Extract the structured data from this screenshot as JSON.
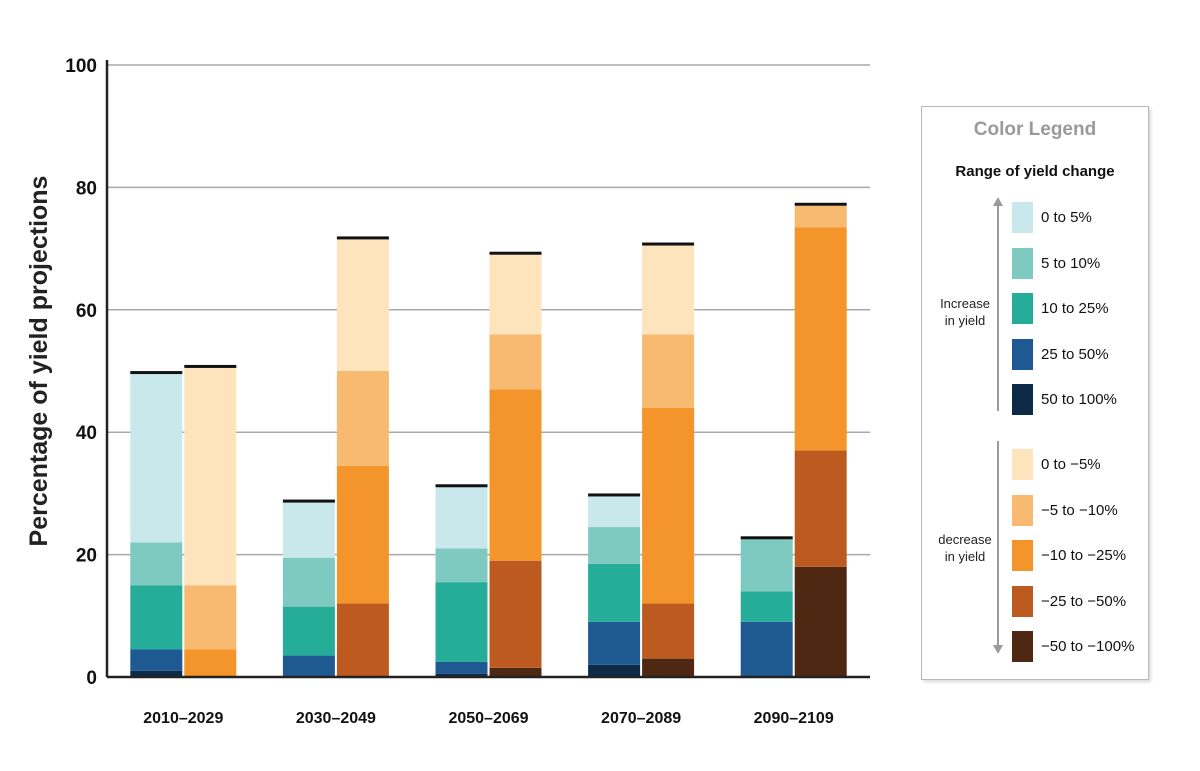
{
  "chart_data": {
    "type": "bar",
    "stacked": true,
    "ylabel": "Percentage of yield projections",
    "xlabel": "",
    "ylim": [
      0,
      100
    ],
    "yticks": [
      0,
      20,
      40,
      60,
      80,
      100
    ],
    "grid": true,
    "categories": [
      "2010–2029",
      "2030–2049",
      "2050–2069",
      "2070–2089",
      "2090–2109"
    ],
    "increase_series": [
      {
        "name": "50 to 100%",
        "color": "#0d2a47",
        "values": [
          1,
          0,
          0.5,
          2,
          0
        ]
      },
      {
        "name": "25 to 50%",
        "color": "#1f5992",
        "values": [
          3.5,
          3.5,
          2,
          7,
          9
        ]
      },
      {
        "name": "10 to 25%",
        "color": "#25ad9a",
        "values": [
          10.5,
          8,
          13,
          9.5,
          5
        ]
      },
      {
        "name": "5 to 10%",
        "color": "#7ecac0",
        "values": [
          7,
          8,
          5.5,
          6,
          8.5
        ]
      },
      {
        "name": "0 to 5%",
        "color": "#c9e8ec",
        "values": [
          27.5,
          9,
          10,
          5,
          0
        ]
      }
    ],
    "decrease_series": [
      {
        "name": "−50 to −100%",
        "color": "#4f2813",
        "values": [
          0,
          0,
          1.5,
          3,
          18
        ]
      },
      {
        "name": "−25 to −50%",
        "color": "#bd5a20",
        "values": [
          0,
          12,
          17.5,
          9,
          19
        ]
      },
      {
        "name": "−10 to −25%",
        "color": "#f3952a",
        "values": [
          4.5,
          22.5,
          28,
          32,
          36.5
        ]
      },
      {
        "name": "−5 to −10%",
        "color": "#f8ba70",
        "values": [
          10.5,
          15.5,
          9,
          12,
          3.5
        ]
      },
      {
        "name": "0 to −5%",
        "color": "#fde4bd",
        "values": [
          35.5,
          21.5,
          13,
          14.5,
          0
        ]
      }
    ],
    "legend": {
      "title": "Color Legend",
      "subtitle": "Range of yield change",
      "increase_label": [
        "Increase",
        "in yield"
      ],
      "decrease_label": [
        "decrease",
        "in yield"
      ],
      "placement": "right"
    }
  }
}
